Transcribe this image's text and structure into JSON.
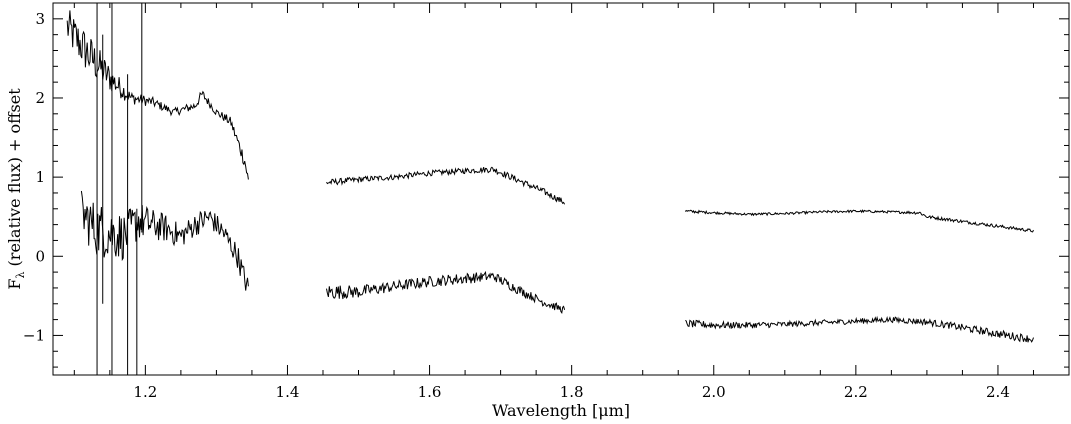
{
  "chart_data": {
    "type": "line",
    "title": "",
    "xlabel": "Wavelength [μm]",
    "ylabel_main": "F",
    "ylabel_sub": "λ",
    "ylabel_rest": " (relative flux) + offset",
    "xlim": [
      1.07,
      2.5
    ],
    "ylim": [
      -1.5,
      3.2
    ],
    "x_ticks": [
      1.2,
      1.4,
      1.6,
      1.8,
      2.0,
      2.2,
      2.4
    ],
    "x_tick_labels": [
      "1.2",
      "1.4",
      "1.6",
      "1.8",
      "2.0",
      "2.2",
      "2.4"
    ],
    "y_ticks": [
      -1,
      0,
      1,
      2,
      3
    ],
    "y_tick_labels": [
      "−1",
      "0",
      "1",
      "2",
      "3"
    ],
    "grid": false,
    "line_color": "#000000",
    "series": [
      {
        "segments": [
          {
            "x": [
              1.09,
              1.12,
              1.15,
              1.18,
              1.21,
              1.24,
              1.27,
              1.28,
              1.3,
              1.32,
              1.34,
              1.345
            ],
            "y": [
              2.9,
              2.55,
              2.25,
              2.0,
              1.95,
              1.82,
              1.9,
              2.05,
              1.82,
              1.7,
              1.2,
              0.95
            ],
            "noise": [
              0.25,
              0.28,
              0.18,
              0.08,
              0.06,
              0.05,
              0.06,
              0.06,
              0.05,
              0.06,
              0.1,
              0.08
            ]
          },
          {
            "x": [
              1.455,
              1.5,
              1.55,
              1.6,
              1.65,
              1.69,
              1.72,
              1.76,
              1.79
            ],
            "y": [
              0.93,
              0.97,
              1.0,
              1.05,
              1.08,
              1.1,
              0.98,
              0.82,
              0.68
            ],
            "noise": [
              0.04,
              0.035,
              0.035,
              0.035,
              0.035,
              0.04,
              0.04,
              0.04,
              0.04
            ]
          },
          {
            "x": [
              1.96,
              2.0,
              2.05,
              2.1,
              2.15,
              2.2,
              2.25,
              2.29,
              2.3,
              2.35,
              2.4,
              2.45
            ],
            "y": [
              0.57,
              0.55,
              0.53,
              0.54,
              0.56,
              0.57,
              0.56,
              0.55,
              0.5,
              0.44,
              0.38,
              0.32
            ],
            "noise": [
              0.02,
              0.015,
              0.015,
              0.015,
              0.015,
              0.015,
              0.015,
              0.02,
              0.02,
              0.02,
              0.02,
              0.02
            ]
          }
        ]
      },
      {
        "segments": [
          {
            "x": [
              1.11,
              1.13,
              1.15,
              1.17,
              1.19,
              1.21,
              1.23,
              1.25,
              1.27,
              1.29,
              1.31,
              1.33,
              1.34,
              1.345
            ],
            "y": [
              0.55,
              0.35,
              0.3,
              0.25,
              0.45,
              0.4,
              0.35,
              0.25,
              0.4,
              0.5,
              0.3,
              0.0,
              -0.3,
              -0.4
            ],
            "noise": [
              0.3,
              0.35,
              0.35,
              0.3,
              0.25,
              0.2,
              0.18,
              0.15,
              0.15,
              0.14,
              0.14,
              0.15,
              0.15,
              0.12
            ]
          },
          {
            "x": [
              1.455,
              1.5,
              1.55,
              1.6,
              1.65,
              1.69,
              1.72,
              1.76,
              1.79
            ],
            "y": [
              -0.45,
              -0.45,
              -0.38,
              -0.32,
              -0.28,
              -0.25,
              -0.4,
              -0.58,
              -0.68
            ],
            "noise": [
              0.1,
              0.08,
              0.07,
              0.07,
              0.07,
              0.06,
              0.06,
              0.05,
              0.05
            ]
          },
          {
            "x": [
              1.96,
              2.0,
              2.05,
              2.1,
              2.15,
              2.2,
              2.25,
              2.3,
              2.35,
              2.4,
              2.45
            ],
            "y": [
              -0.85,
              -0.87,
              -0.87,
              -0.86,
              -0.84,
              -0.82,
              -0.8,
              -0.83,
              -0.9,
              -0.98,
              -1.05
            ],
            "noise": [
              0.05,
              0.045,
              0.04,
              0.035,
              0.035,
              0.035,
              0.035,
              0.04,
              0.045,
              0.05,
              0.05
            ]
          }
        ]
      }
    ],
    "spikes": [
      {
        "x": 1.132,
        "y": [
          -1.5,
          3.2
        ]
      },
      {
        "x": 1.153,
        "y": [
          -1.5,
          3.2
        ]
      },
      {
        "x": 1.175,
        "y": [
          -1.5,
          2.3
        ]
      },
      {
        "x": 1.188,
        "y": [
          -1.5,
          0.6
        ]
      },
      {
        "x": 1.195,
        "y": [
          0.3,
          3.2
        ]
      },
      {
        "x": 1.14,
        "y": [
          -0.6,
          2.8
        ]
      }
    ]
  }
}
